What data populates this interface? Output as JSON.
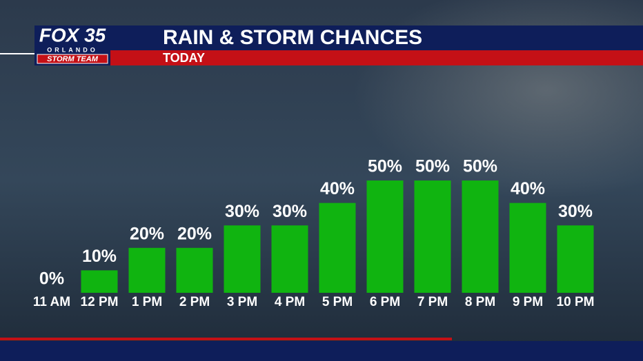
{
  "header": {
    "brand": "FOX 35",
    "city": "ORLANDO",
    "team": "STORM TEAM"
  },
  "chart_data": {
    "type": "bar",
    "title": "RAIN & STORM CHANCES",
    "subtitle": "TODAY",
    "categories": [
      "11 AM",
      "12 PM",
      "1 PM",
      "2 PM",
      "3 PM",
      "4 PM",
      "5 PM",
      "6 PM",
      "7 PM",
      "8 PM",
      "9 PM",
      "10 PM"
    ],
    "values": [
      0,
      10,
      20,
      20,
      30,
      30,
      40,
      50,
      50,
      50,
      40,
      30
    ],
    "value_labels": [
      "0%",
      "10%",
      "20%",
      "20%",
      "30%",
      "30%",
      "40%",
      "50%",
      "50%",
      "50%",
      "40%",
      "30%"
    ],
    "color": "#10b410"
  }
}
